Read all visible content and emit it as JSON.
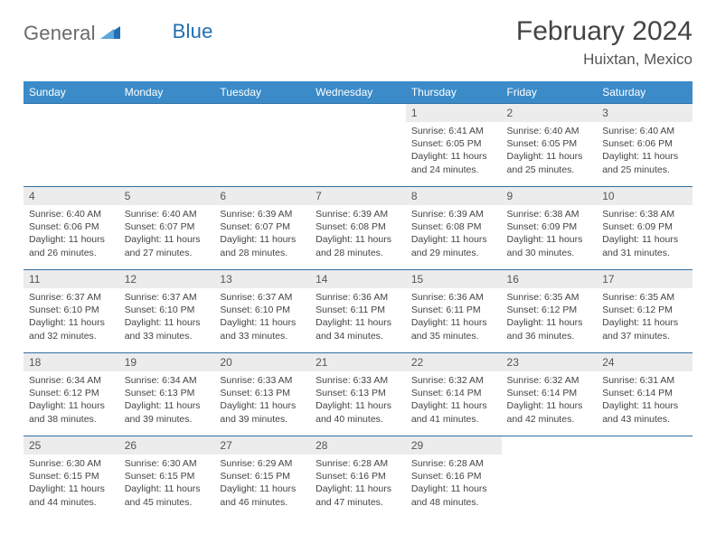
{
  "brand": {
    "name1": "General",
    "name2": "Blue"
  },
  "title": "February 2024",
  "location": "Huixtan, Mexico",
  "colors": {
    "header_bg": "#3b8bc9",
    "header_text": "#ffffff",
    "daynum_bg": "#ececec",
    "border": "#2f6fa3",
    "logo_gray": "#6b6b6b",
    "logo_blue": "#1f6fb2"
  },
  "daysOfWeek": [
    "Sunday",
    "Monday",
    "Tuesday",
    "Wednesday",
    "Thursday",
    "Friday",
    "Saturday"
  ],
  "weeks": [
    [
      {
        "n": "",
        "sr": "",
        "ss": "",
        "dl": ""
      },
      {
        "n": "",
        "sr": "",
        "ss": "",
        "dl": ""
      },
      {
        "n": "",
        "sr": "",
        "ss": "",
        "dl": ""
      },
      {
        "n": "",
        "sr": "",
        "ss": "",
        "dl": ""
      },
      {
        "n": "1",
        "sr": "Sunrise: 6:41 AM",
        "ss": "Sunset: 6:05 PM",
        "dl": "Daylight: 11 hours and 24 minutes."
      },
      {
        "n": "2",
        "sr": "Sunrise: 6:40 AM",
        "ss": "Sunset: 6:05 PM",
        "dl": "Daylight: 11 hours and 25 minutes."
      },
      {
        "n": "3",
        "sr": "Sunrise: 6:40 AM",
        "ss": "Sunset: 6:06 PM",
        "dl": "Daylight: 11 hours and 25 minutes."
      }
    ],
    [
      {
        "n": "4",
        "sr": "Sunrise: 6:40 AM",
        "ss": "Sunset: 6:06 PM",
        "dl": "Daylight: 11 hours and 26 minutes."
      },
      {
        "n": "5",
        "sr": "Sunrise: 6:40 AM",
        "ss": "Sunset: 6:07 PM",
        "dl": "Daylight: 11 hours and 27 minutes."
      },
      {
        "n": "6",
        "sr": "Sunrise: 6:39 AM",
        "ss": "Sunset: 6:07 PM",
        "dl": "Daylight: 11 hours and 28 minutes."
      },
      {
        "n": "7",
        "sr": "Sunrise: 6:39 AM",
        "ss": "Sunset: 6:08 PM",
        "dl": "Daylight: 11 hours and 28 minutes."
      },
      {
        "n": "8",
        "sr": "Sunrise: 6:39 AM",
        "ss": "Sunset: 6:08 PM",
        "dl": "Daylight: 11 hours and 29 minutes."
      },
      {
        "n": "9",
        "sr": "Sunrise: 6:38 AM",
        "ss": "Sunset: 6:09 PM",
        "dl": "Daylight: 11 hours and 30 minutes."
      },
      {
        "n": "10",
        "sr": "Sunrise: 6:38 AM",
        "ss": "Sunset: 6:09 PM",
        "dl": "Daylight: 11 hours and 31 minutes."
      }
    ],
    [
      {
        "n": "11",
        "sr": "Sunrise: 6:37 AM",
        "ss": "Sunset: 6:10 PM",
        "dl": "Daylight: 11 hours and 32 minutes."
      },
      {
        "n": "12",
        "sr": "Sunrise: 6:37 AM",
        "ss": "Sunset: 6:10 PM",
        "dl": "Daylight: 11 hours and 33 minutes."
      },
      {
        "n": "13",
        "sr": "Sunrise: 6:37 AM",
        "ss": "Sunset: 6:10 PM",
        "dl": "Daylight: 11 hours and 33 minutes."
      },
      {
        "n": "14",
        "sr": "Sunrise: 6:36 AM",
        "ss": "Sunset: 6:11 PM",
        "dl": "Daylight: 11 hours and 34 minutes."
      },
      {
        "n": "15",
        "sr": "Sunrise: 6:36 AM",
        "ss": "Sunset: 6:11 PM",
        "dl": "Daylight: 11 hours and 35 minutes."
      },
      {
        "n": "16",
        "sr": "Sunrise: 6:35 AM",
        "ss": "Sunset: 6:12 PM",
        "dl": "Daylight: 11 hours and 36 minutes."
      },
      {
        "n": "17",
        "sr": "Sunrise: 6:35 AM",
        "ss": "Sunset: 6:12 PM",
        "dl": "Daylight: 11 hours and 37 minutes."
      }
    ],
    [
      {
        "n": "18",
        "sr": "Sunrise: 6:34 AM",
        "ss": "Sunset: 6:12 PM",
        "dl": "Daylight: 11 hours and 38 minutes."
      },
      {
        "n": "19",
        "sr": "Sunrise: 6:34 AM",
        "ss": "Sunset: 6:13 PM",
        "dl": "Daylight: 11 hours and 39 minutes."
      },
      {
        "n": "20",
        "sr": "Sunrise: 6:33 AM",
        "ss": "Sunset: 6:13 PM",
        "dl": "Daylight: 11 hours and 39 minutes."
      },
      {
        "n": "21",
        "sr": "Sunrise: 6:33 AM",
        "ss": "Sunset: 6:13 PM",
        "dl": "Daylight: 11 hours and 40 minutes."
      },
      {
        "n": "22",
        "sr": "Sunrise: 6:32 AM",
        "ss": "Sunset: 6:14 PM",
        "dl": "Daylight: 11 hours and 41 minutes."
      },
      {
        "n": "23",
        "sr": "Sunrise: 6:32 AM",
        "ss": "Sunset: 6:14 PM",
        "dl": "Daylight: 11 hours and 42 minutes."
      },
      {
        "n": "24",
        "sr": "Sunrise: 6:31 AM",
        "ss": "Sunset: 6:14 PM",
        "dl": "Daylight: 11 hours and 43 minutes."
      }
    ],
    [
      {
        "n": "25",
        "sr": "Sunrise: 6:30 AM",
        "ss": "Sunset: 6:15 PM",
        "dl": "Daylight: 11 hours and 44 minutes."
      },
      {
        "n": "26",
        "sr": "Sunrise: 6:30 AM",
        "ss": "Sunset: 6:15 PM",
        "dl": "Daylight: 11 hours and 45 minutes."
      },
      {
        "n": "27",
        "sr": "Sunrise: 6:29 AM",
        "ss": "Sunset: 6:15 PM",
        "dl": "Daylight: 11 hours and 46 minutes."
      },
      {
        "n": "28",
        "sr": "Sunrise: 6:28 AM",
        "ss": "Sunset: 6:16 PM",
        "dl": "Daylight: 11 hours and 47 minutes."
      },
      {
        "n": "29",
        "sr": "Sunrise: 6:28 AM",
        "ss": "Sunset: 6:16 PM",
        "dl": "Daylight: 11 hours and 48 minutes."
      },
      {
        "n": "",
        "sr": "",
        "ss": "",
        "dl": ""
      },
      {
        "n": "",
        "sr": "",
        "ss": "",
        "dl": ""
      }
    ]
  ]
}
